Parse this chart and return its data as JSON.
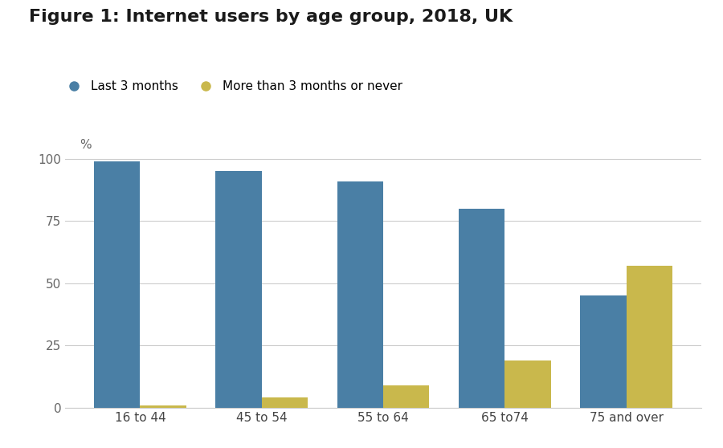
{
  "title": "Figure 1: Internet users by age group, 2018, UK",
  "categories": [
    "16 to 44",
    "45 to 54",
    "55 to 64",
    "65 to74",
    "75 and over"
  ],
  "series": [
    {
      "label": "Last 3 months",
      "color": "#4a7fa5",
      "values": [
        99,
        95,
        91,
        80,
        45
      ]
    },
    {
      "label": "More than 3 months or never",
      "color": "#c9b84c",
      "values": [
        1,
        4,
        9,
        19,
        57
      ]
    }
  ],
  "ylabel": "%",
  "ylim": [
    0,
    108
  ],
  "yticks": [
    0,
    25,
    50,
    75,
    100
  ],
  "background_color": "#ffffff",
  "grid_color": "#cccccc",
  "bar_width": 0.38,
  "title_fontsize": 16,
  "legend_fontsize": 11,
  "tick_fontsize": 11,
  "ylabel_fontsize": 11
}
